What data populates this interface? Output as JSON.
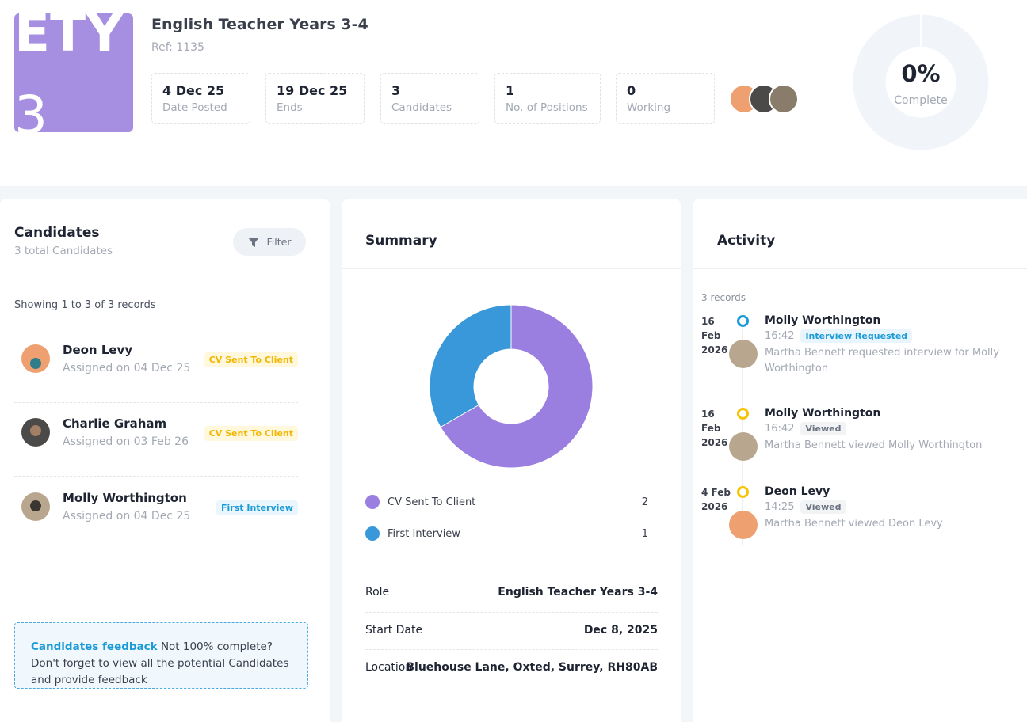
{
  "header": {
    "logo_lines": [
      "ETY",
      "3"
    ],
    "title": "English Teacher Years 3-4",
    "ref": "Ref: 1135",
    "stats": [
      {
        "value": "4 Dec 25",
        "label": "Date Posted"
      },
      {
        "value": "19 Dec 25",
        "label": "Ends"
      },
      {
        "value": "3",
        "label": "Candidates"
      },
      {
        "value": "1",
        "label": "No. of Positions"
      },
      {
        "value": "0",
        "label": "Working"
      }
    ],
    "progress": {
      "value": "0%",
      "label": "Complete"
    }
  },
  "candidates": {
    "title": "Candidates",
    "subtitle": "3 total Candidates",
    "filter": "Filter",
    "showing": "Showing 1 to 3 of 3 records",
    "items": [
      {
        "name": "Deon Levy",
        "assigned": "Assigned on 04 Dec 25",
        "status": "CV Sent To Client"
      },
      {
        "name": "Charlie Graham",
        "assigned": "Assigned on 03 Feb 26",
        "status": "CV Sent To Client"
      },
      {
        "name": "Molly Worthington",
        "assigned": "Assigned on 04 Dec 25",
        "status": "First Interview"
      }
    ],
    "feedback": {
      "link": "Candidates feedback",
      "text": "Not 100% complete? Don't forget to view all the potential Candidates and provide feedback"
    }
  },
  "summary": {
    "title": "Summary",
    "chart": {
      "type": "donut",
      "series": [
        {
          "name": "CV Sent To Client",
          "color": "#9a7fe0",
          "value": 2
        },
        {
          "name": "First Interview",
          "color": "#3898da",
          "value": 1
        }
      ]
    },
    "details": [
      {
        "label": "Role",
        "value": "English Teacher Years 3-4"
      },
      {
        "label": "Start Date",
        "value": "Dec 8, 2025"
      },
      {
        "label": "Location",
        "value": "Bluehouse Lane, Oxted, Surrey, RH80AB"
      }
    ]
  },
  "activity": {
    "title": "Activity",
    "records": "3 records",
    "items": [
      {
        "date": "16 Feb 2026",
        "name": "Molly Worthington",
        "time": "16:42",
        "tag": "Interview Requested",
        "text": "Martha Bennett requested interview for Molly Worthington"
      },
      {
        "date": "16 Feb 2026",
        "name": "Molly Worthington",
        "time": "16:42",
        "tag": "Viewed",
        "text": "Martha Bennett viewed Molly Worthington"
      },
      {
        "date": "4 Feb 2026",
        "name": "Deon Levy",
        "time": "14:25",
        "tag": "Viewed",
        "text": "Martha Bennett viewed Deon Levy"
      }
    ]
  }
}
